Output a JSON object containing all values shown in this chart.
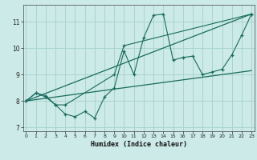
{
  "title": "",
  "xlabel": "Humidex (Indice chaleur)",
  "ylabel": "",
  "bg_color": "#cceae7",
  "grid_color": "#aad4d0",
  "line_color": "#1a6b5e",
  "x_values": [
    0,
    1,
    2,
    3,
    4,
    5,
    6,
    7,
    8,
    9,
    10,
    11,
    12,
    13,
    14,
    15,
    16,
    17,
    18,
    19,
    20,
    21,
    22,
    23
  ],
  "line1": [
    8.0,
    8.3,
    8.2,
    7.85,
    7.5,
    7.4,
    7.6,
    7.35,
    8.15,
    8.5,
    9.9,
    9.0,
    10.4,
    11.25,
    11.3,
    9.55,
    9.65,
    9.7,
    9.0,
    9.1,
    9.2,
    9.75,
    10.5,
    11.3
  ],
  "line2_x": [
    0,
    1,
    2,
    3,
    4,
    9,
    10,
    23
  ],
  "line2_y": [
    8.0,
    8.3,
    8.15,
    7.85,
    7.85,
    9.0,
    10.1,
    11.3
  ],
  "line3_x": [
    0,
    23
  ],
  "line3_y": [
    8.0,
    11.3
  ],
  "line4_x": [
    0,
    23
  ],
  "line4_y": [
    8.0,
    9.15
  ],
  "ylim": [
    6.85,
    11.65
  ],
  "xlim": [
    -0.3,
    23.3
  ],
  "yticks": [
    7,
    8,
    9,
    10,
    11
  ],
  "xticks": [
    0,
    1,
    2,
    3,
    4,
    5,
    6,
    7,
    8,
    9,
    10,
    11,
    12,
    13,
    14,
    15,
    16,
    17,
    18,
    19,
    20,
    21,
    22,
    23
  ]
}
